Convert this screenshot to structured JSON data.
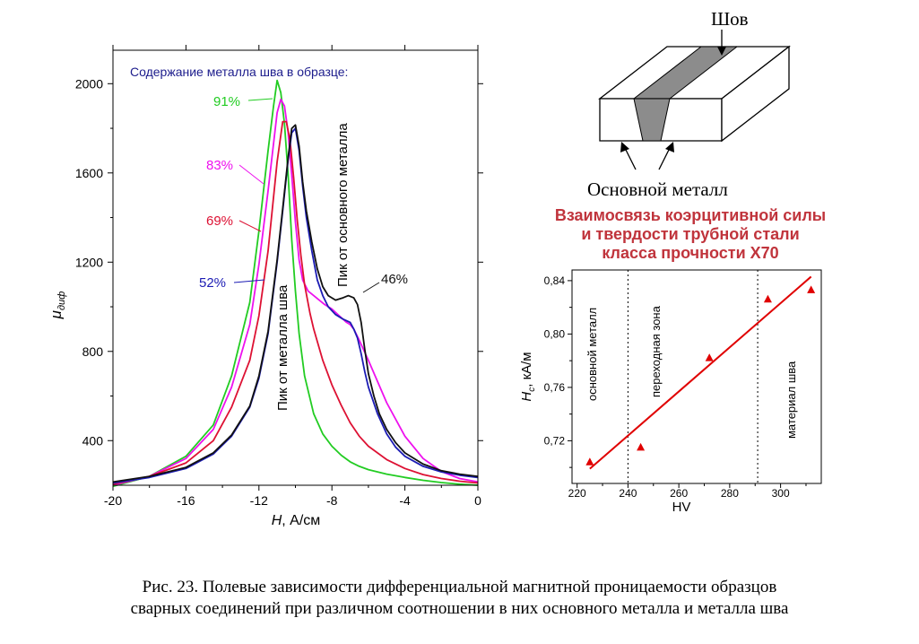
{
  "chart_data": [
    {
      "type": "line",
      "xlabel_var": "H",
      "xlabel_unit": ", А/см",
      "ylabel_var": "μ",
      "ylabel_sub": "диф",
      "xlim": [
        -20,
        0
      ],
      "ylim": [
        200,
        2150
      ],
      "x_ticks": [
        -20,
        -16,
        -12,
        -8,
        -4,
        0
      ],
      "x_tick_labels": [
        "-20",
        "-16",
        "-12",
        "-8",
        "-4",
        "0"
      ],
      "y_ticks": [
        400,
        800,
        1200,
        1600,
        2000
      ],
      "y_tick_labels": [
        "400",
        "800",
        "1200",
        "1600",
        "2000"
      ],
      "legend_title": "Содержание металла шва в образце:",
      "series": [
        {
          "name": "91%",
          "color": "#22cc22",
          "x": [
            -20,
            -18,
            -16,
            -14.5,
            -13.5,
            -12.5,
            -12,
            -11.5,
            -11.2,
            -11,
            -10.8,
            -10.6,
            -10.4,
            -10.2,
            -10,
            -9.8,
            -9.5,
            -9,
            -8.5,
            -8,
            -7.5,
            -7,
            -6.5,
            -6,
            -5,
            -4,
            -3,
            -2,
            -1,
            0
          ],
          "y": [
            195,
            240,
            330,
            470,
            690,
            1020,
            1340,
            1700,
            1900,
            2015,
            1960,
            1820,
            1590,
            1300,
            1070,
            880,
            690,
            520,
            430,
            375,
            335,
            305,
            285,
            270,
            250,
            235,
            222,
            212,
            205,
            200
          ]
        },
        {
          "name": "83%",
          "color": "#ee11ee",
          "x": [
            -20,
            -18,
            -16,
            -14.5,
            -13.5,
            -12.5,
            -12,
            -11.5,
            -11,
            -10.8,
            -10.6,
            -10.4,
            -10.2,
            -10,
            -9.8,
            -9.6,
            -9.3,
            -9,
            -8.7,
            -8.4,
            -8,
            -7.6,
            -7.2,
            -7,
            -6.8,
            -6.5,
            -6,
            -5,
            -4,
            -3,
            -2,
            -1,
            0
          ],
          "y": [
            200,
            240,
            320,
            450,
            640,
            920,
            1190,
            1520,
            1870,
            1930,
            1900,
            1780,
            1590,
            1380,
            1210,
            1120,
            1070,
            1050,
            1030,
            1010,
            990,
            960,
            930,
            920,
            900,
            850,
            760,
            570,
            420,
            320,
            262,
            230,
            215
          ]
        },
        {
          "name": "69%",
          "color": "#dd1133",
          "x": [
            -20,
            -18,
            -16,
            -14.5,
            -13.5,
            -12.5,
            -12,
            -11.5,
            -11,
            -10.7,
            -10.5,
            -10.3,
            -10.1,
            -9.9,
            -9.7,
            -9.5,
            -9.2,
            -9,
            -8.5,
            -8,
            -7.5,
            -7,
            -6.5,
            -6,
            -5,
            -4,
            -3,
            -2,
            -1,
            0
          ],
          "y": [
            205,
            240,
            300,
            400,
            550,
            760,
            960,
            1250,
            1650,
            1830,
            1830,
            1750,
            1580,
            1390,
            1230,
            1100,
            970,
            900,
            760,
            650,
            560,
            480,
            420,
            375,
            315,
            275,
            248,
            230,
            218,
            210
          ]
        },
        {
          "name": "52%",
          "color": "#1c1cb4",
          "x": [
            -20,
            -18,
            -16,
            -14.5,
            -13.5,
            -12.5,
            -12,
            -11.5,
            -11,
            -10.7,
            -10.4,
            -10.2,
            -10,
            -9.8,
            -9.6,
            -9.4,
            -9.1,
            -8.8,
            -8.5,
            -8.2,
            -7.8,
            -7.4,
            -7,
            -6.8,
            -6.6,
            -6.4,
            -6.2,
            -6,
            -5.5,
            -5,
            -4.5,
            -4,
            -3,
            -2,
            -1,
            0
          ],
          "y": [
            210,
            235,
            275,
            340,
            420,
            550,
            680,
            880,
            1200,
            1430,
            1660,
            1780,
            1800,
            1700,
            1540,
            1400,
            1250,
            1120,
            1050,
            1000,
            965,
            945,
            930,
            900,
            860,
            790,
            710,
            640,
            520,
            430,
            370,
            330,
            285,
            260,
            245,
            235
          ]
        },
        {
          "name": "46%",
          "color": "#111111",
          "x": [
            -20,
            -18,
            -16,
            -14.5,
            -13.5,
            -12.5,
            -12,
            -11.5,
            -11,
            -10.7,
            -10.4,
            -10.2,
            -10,
            -9.8,
            -9.6,
            -9.4,
            -9.1,
            -8.8,
            -8.5,
            -8.2,
            -7.8,
            -7.4,
            -7.1,
            -6.8,
            -6.6,
            -6.4,
            -6.2,
            -6,
            -5.7,
            -5.4,
            -5,
            -4.5,
            -4,
            -3,
            -2,
            -1,
            0
          ],
          "y": [
            215,
            240,
            280,
            345,
            425,
            555,
            690,
            890,
            1210,
            1440,
            1670,
            1800,
            1815,
            1720,
            1560,
            1430,
            1290,
            1170,
            1090,
            1050,
            1030,
            1040,
            1050,
            1040,
            1010,
            930,
            810,
            700,
            600,
            520,
            450,
            390,
            345,
            295,
            265,
            250,
            240
          ]
        }
      ],
      "annotations": [
        "Пик от основного металла",
        "Пик от металла шва"
      ]
    },
    {
      "type": "scatter",
      "xlabel": "HV",
      "ylabel_var": "H",
      "ylabel_sub": "c",
      "ylabel_unit": ", кА/м",
      "xlim": [
        218,
        316
      ],
      "ylim": [
        0.688,
        0.848
      ],
      "x_ticks": [
        220,
        240,
        260,
        280,
        300
      ],
      "x_tick_labels": [
        "220",
        "240",
        "260",
        "280",
        "300"
      ],
      "y_ticks": [
        0.72,
        0.76,
        0.8,
        0.84
      ],
      "y_tick_labels": [
        "0,72",
        "0,76",
        "0,80",
        "0,84"
      ],
      "points": {
        "x": [
          225,
          245,
          272,
          295,
          312
        ],
        "y": [
          0.704,
          0.715,
          0.782,
          0.826,
          0.833
        ],
        "color": "#e00000",
        "marker": "triangle"
      },
      "fit_line": {
        "x": [
          225,
          312
        ],
        "y": [
          0.699,
          0.843
        ],
        "color": "#e00000"
      },
      "vlines": [
        240,
        291
      ],
      "zone_labels": [
        "основной металл",
        "переходная зона",
        "материал шва"
      ]
    }
  ],
  "inset_title": [
    "Взаимосвязь коэрцитивной силы",
    "и твердости трубной стали",
    "класса  прочности Х70"
  ],
  "inset_title_color": "#c0343c",
  "schematic": {
    "seam_label": "Шов",
    "base_metal_label": "Основной металл"
  },
  "caption": [
    "Рис. 23. Полевые зависимости дифференциальной магнитной проницаемости образцов",
    "сварных соединений при различном соотношении в них основного металла и металла шва"
  ]
}
